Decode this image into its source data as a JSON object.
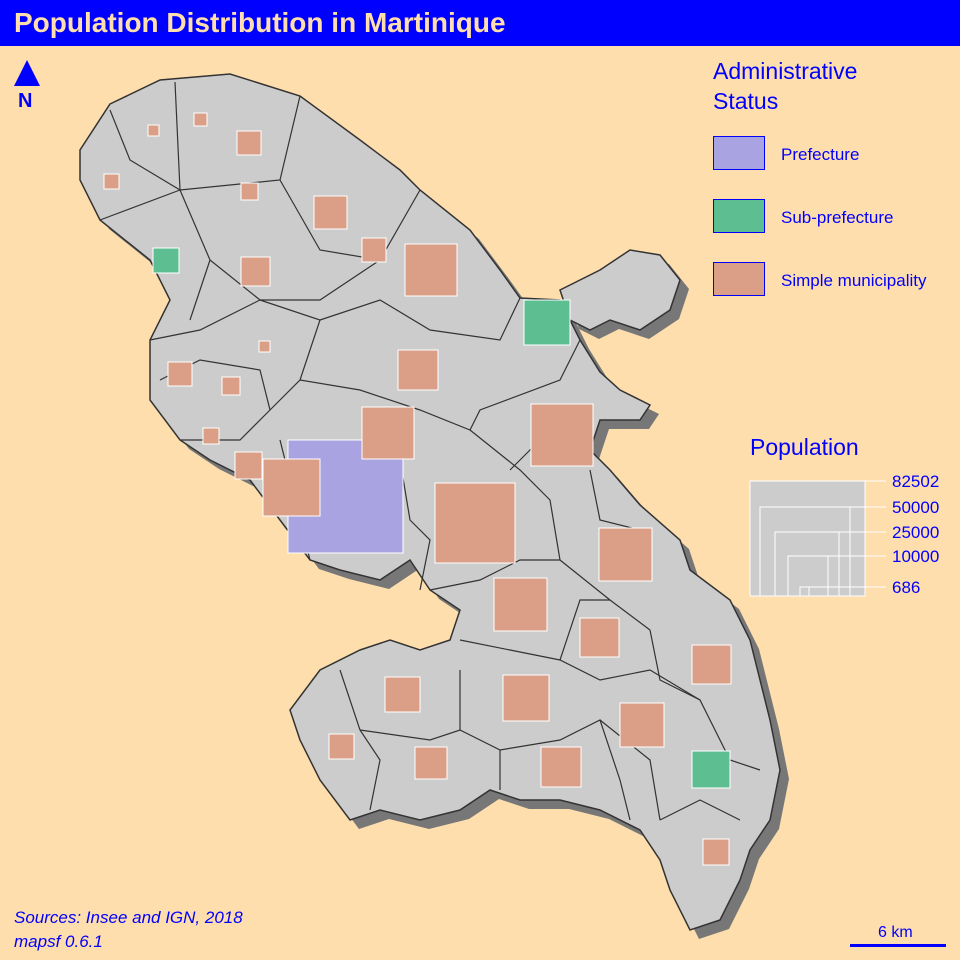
{
  "title": "Population Distribution in Martinique",
  "north_label": "N",
  "colors": {
    "background": "#FFDEAD",
    "title_bar": "#0000FF",
    "land": "#CCCCCC",
    "border": "#333333",
    "shadow": "#777777",
    "prefecture": "#AAA3E2",
    "sub_prefecture": "#5DBF91",
    "simple_municipality": "#DB9E87"
  },
  "legend_status": {
    "title": "Administrative Status",
    "items": [
      {
        "label": "Prefecture",
        "color": "#AAA3E2"
      },
      {
        "label": "Sub-prefecture",
        "color": "#5DBF91"
      },
      {
        "label": "Simple municipality",
        "color": "#DB9E87"
      }
    ]
  },
  "legend_population": {
    "title": "Population",
    "values": [
      82502,
      50000,
      25000,
      10000,
      686
    ],
    "labels": [
      "82502",
      "50000",
      "25000",
      "10000",
      "686"
    ]
  },
  "sources": {
    "line1": "Sources: Insee and IGN, 2018",
    "line2": "mapsf 0.6.1"
  },
  "scale_bar": {
    "label": "6 km"
  }
}
